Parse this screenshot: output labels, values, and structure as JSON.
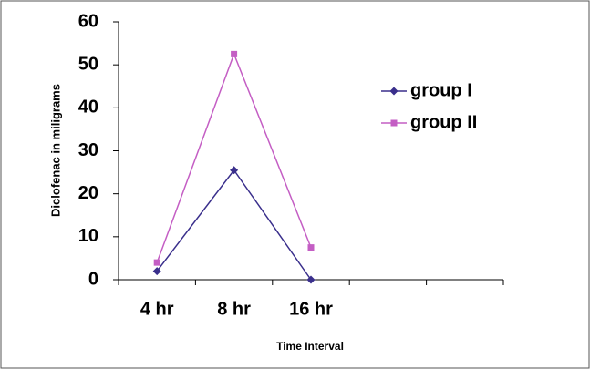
{
  "chart_data": {
    "type": "line",
    "x_label": "Time Interval",
    "y_label": "Diclofenac in miligrams",
    "categories": [
      "4 hr",
      "8 hr",
      "16 hr",
      null,
      null
    ],
    "series": [
      {
        "name": "group I",
        "color": "#3a2f8c",
        "marker": "diamond",
        "values": [
          2,
          25.5,
          0,
          null,
          null
        ]
      },
      {
        "name": "group II",
        "color": "#c45ec4",
        "marker": "square",
        "values": [
          4,
          52.5,
          7.5,
          null,
          null
        ]
      }
    ],
    "ylim": [
      0,
      60
    ],
    "yticks": [
      0,
      10,
      20,
      30,
      40,
      50,
      60
    ],
    "legend": "right"
  }
}
